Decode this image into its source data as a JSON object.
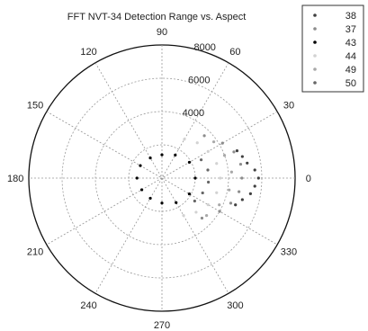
{
  "chart_data": {
    "type": "scatter",
    "coordinate_system": "polar",
    "title": "FFT NVT-34 Detection Range vs. Aspect",
    "angle_units": "degrees",
    "angle_ticks": [
      "0",
      "30",
      "60",
      "90",
      "120",
      "150",
      "180",
      "210",
      "240",
      "270",
      "300",
      "330"
    ],
    "radial_ticks": [
      "4000",
      "6000",
      "8000"
    ],
    "rlim": [
      0,
      8000
    ],
    "grid": true,
    "legend": {
      "placement": "top-right",
      "entries": [
        "38",
        "37",
        "43",
        "44",
        "49",
        "50"
      ]
    },
    "series": [
      {
        "name": "38",
        "color": "#404040",
        "points": [
          {
            "theta": 10,
            "r": 5200
          },
          {
            "theta": 5,
            "r": 5600
          },
          {
            "theta": 0,
            "r": 5800
          },
          {
            "theta": -5,
            "r": 5600
          },
          {
            "theta": -10,
            "r": 5400
          },
          {
            "theta": 15,
            "r": 5000
          },
          {
            "theta": 20,
            "r": 4800
          },
          {
            "theta": -15,
            "r": 5000
          },
          {
            "theta": -20,
            "r": 4700
          }
        ]
      },
      {
        "name": "37",
        "color": "#8c8c8c",
        "points": [
          {
            "theta": 30,
            "r": 4200
          },
          {
            "theta": 20,
            "r": 4600
          },
          {
            "theta": 10,
            "r": 4800
          },
          {
            "theta": 0,
            "r": 4800
          },
          {
            "theta": -10,
            "r": 4700
          },
          {
            "theta": -20,
            "r": 4400
          },
          {
            "theta": -30,
            "r": 4000
          },
          {
            "theta": -45,
            "r": 3400
          },
          {
            "theta": 45,
            "r": 3600
          }
        ]
      },
      {
        "name": "43",
        "color": "#000000",
        "points": [
          {
            "theta": 0,
            "r": 2000
          },
          {
            "theta": 30,
            "r": 1900
          },
          {
            "theta": 60,
            "r": 1600
          },
          {
            "theta": 90,
            "r": 1400
          },
          {
            "theta": 120,
            "r": 1400
          },
          {
            "theta": 150,
            "r": 1500
          },
          {
            "theta": 180,
            "r": 1500
          },
          {
            "theta": 210,
            "r": 1400
          },
          {
            "theta": 240,
            "r": 1400
          },
          {
            "theta": 270,
            "r": 1500
          },
          {
            "theta": 300,
            "r": 1700
          },
          {
            "theta": 330,
            "r": 1900
          }
        ]
      },
      {
        "name": "44",
        "color": "#d2d2d2",
        "points": [
          {
            "theta": 45,
            "r": 3000
          },
          {
            "theta": 30,
            "r": 3200
          },
          {
            "theta": 15,
            "r": 3400
          },
          {
            "theta": 0,
            "r": 3500
          },
          {
            "theta": -15,
            "r": 3400
          },
          {
            "theta": -30,
            "r": 3200
          },
          {
            "theta": -45,
            "r": 2900
          },
          {
            "theta": -60,
            "r": 2600
          },
          {
            "theta": 60,
            "r": 2700
          }
        ]
      },
      {
        "name": "49",
        "color": "#a8a8a8",
        "points": [
          {
            "theta": 35,
            "r": 3800
          },
          {
            "theta": 20,
            "r": 4000
          },
          {
            "theta": 5,
            "r": 4200
          },
          {
            "theta": -10,
            "r": 4100
          },
          {
            "theta": -25,
            "r": 3800
          },
          {
            "theta": -40,
            "r": 3500
          }
        ]
      },
      {
        "name": "50",
        "color": "#666666",
        "points": [
          {
            "theta": 25,
            "r": 2600
          },
          {
            "theta": 10,
            "r": 2800
          },
          {
            "theta": -5,
            "r": 2800
          },
          {
            "theta": -20,
            "r": 2600
          },
          {
            "theta": -35,
            "r": 2400
          }
        ]
      }
    ]
  }
}
